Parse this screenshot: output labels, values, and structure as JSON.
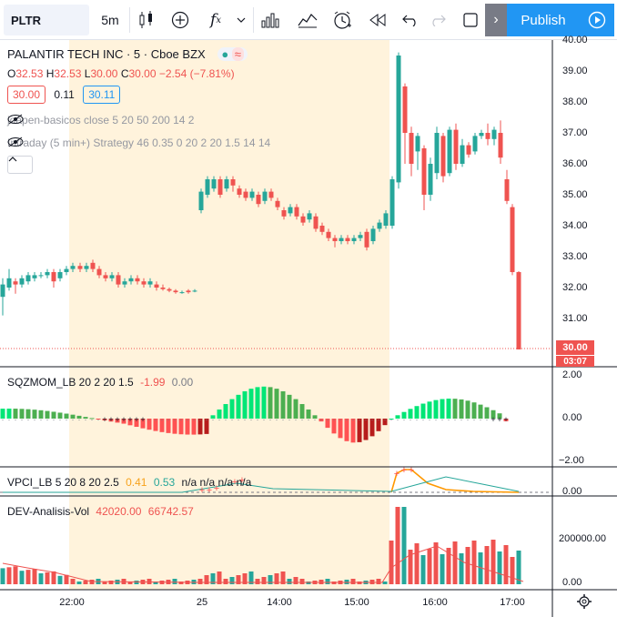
{
  "toolbar": {
    "symbol": "PLTR",
    "interval": "5m",
    "indicator_icon": "fx-icon",
    "publish_label": "Publish"
  },
  "main_legend": {
    "name": "PALANTIR TECH INC · 5 · Cboe BZX",
    "open_label": "O",
    "open": "32.53",
    "high_label": "H",
    "high": "32.53",
    "low_label": "L",
    "low": "30.00",
    "close_label": "C",
    "close": "30.00",
    "change": "−2.54 (−7.81%)",
    "bid": "30.00",
    "spread": "0.11",
    "ask": "30.11",
    "ind1": "joapen-basicos close 5 20 50 200 14 2",
    "ind2": "Intraday (5 min+) Strategy 46 0.35 0 20 2 20 1.5 14 14"
  },
  "price_axis": [
    "40.00",
    "39.00",
    "38.00",
    "37.00",
    "36.00",
    "35.00",
    "34.00",
    "33.00",
    "32.00",
    "31.00"
  ],
  "price_tag": "30.00",
  "time_tag": "03:07",
  "sqz": {
    "label": "SQZMOM_LB 20 2 20 1.5",
    "v1": "-1.99",
    "v2": "0.00",
    "axis": [
      "2.00",
      "0.00",
      "−2.00"
    ]
  },
  "vpci": {
    "label": "VPCI_LB 5 20 8 20 2.5",
    "v1": "0.41",
    "v2": "0.53",
    "na": "n/a n/a n/a n/a",
    "axis": "0.00"
  },
  "dev": {
    "label": "DEV-Analisis-Vol",
    "v1": "42020.00",
    "v2": "66742.57",
    "axis": [
      "200000.00",
      "0.00"
    ]
  },
  "time_axis": [
    "22:00",
    "25",
    "14:00",
    "15:00",
    "16:00",
    "17:00"
  ],
  "colors": {
    "up": "#26a69a",
    "down": "#ef5350",
    "session_bg": "#fff3dc",
    "accent": "#2196f3"
  }
}
